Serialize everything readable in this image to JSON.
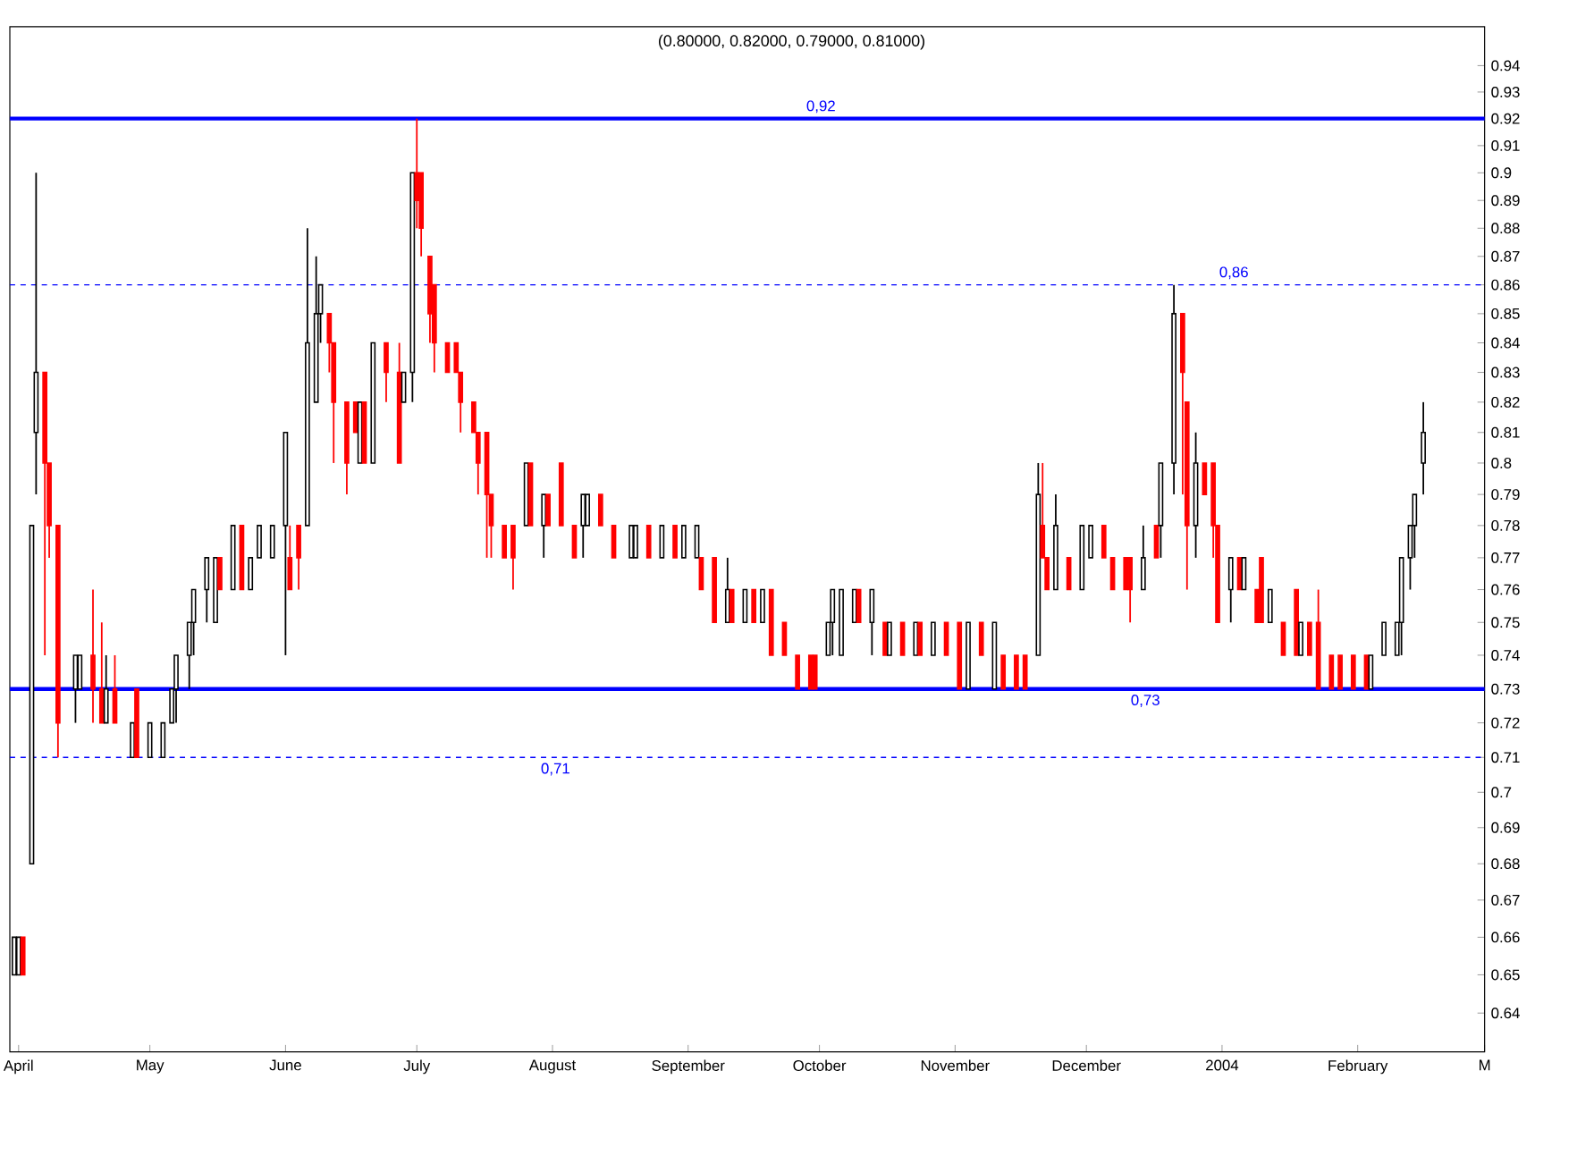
{
  "chart_data": {
    "type": "candlestick",
    "title": "(0.80000, 0.82000, 0.79000, 0.81000)",
    "log": true,
    "x": [
      "2003-03-31",
      "2003-04-01",
      "2003-04-02",
      "2003-04-04",
      "2003-04-05",
      "2003-04-07",
      "2003-04-08",
      "2003-04-10",
      "2003-04-14",
      "2003-04-15",
      "2003-04-18",
      "2003-04-20",
      "2003-04-21",
      "2003-04-23",
      "2003-04-27",
      "2003-04-28",
      "2003-05-01",
      "2003-05-04",
      "2003-05-06",
      "2003-05-07",
      "2003-05-10",
      "2003-05-11",
      "2003-05-14",
      "2003-05-16",
      "2003-05-17",
      "2003-05-20",
      "2003-05-22",
      "2003-05-24",
      "2003-05-26",
      "2003-05-29",
      "2003-06-01",
      "2003-06-02",
      "2003-06-04",
      "2003-06-06",
      "2003-06-08",
      "2003-06-09",
      "2003-06-11",
      "2003-06-12",
      "2003-06-15",
      "2003-06-17",
      "2003-06-18",
      "2003-06-19",
      "2003-06-21",
      "2003-06-24",
      "2003-06-27",
      "2003-06-28",
      "2003-06-30",
      "2003-07-01",
      "2003-07-02",
      "2003-07-04",
      "2003-07-05",
      "2003-07-08",
      "2003-07-10",
      "2003-07-11",
      "2003-07-14",
      "2003-07-15",
      "2003-07-17",
      "2003-07-18",
      "2003-07-21",
      "2003-07-23",
      "2003-07-26",
      "2003-07-27",
      "2003-07-30",
      "2003-07-31",
      "2003-08-03",
      "2003-08-06",
      "2003-08-08",
      "2003-08-09",
      "2003-08-12",
      "2003-08-15",
      "2003-08-19",
      "2003-08-20",
      "2003-08-23",
      "2003-08-26",
      "2003-08-29",
      "2003-08-31",
      "2003-09-03",
      "2003-09-04",
      "2003-09-07",
      "2003-09-10",
      "2003-09-11",
      "2003-09-14",
      "2003-09-16",
      "2003-09-18",
      "2003-09-20",
      "2003-09-23",
      "2003-09-26",
      "2003-09-29",
      "2003-09-30",
      "2003-10-03",
      "2003-10-04",
      "2003-10-06",
      "2003-10-09",
      "2003-10-10",
      "2003-10-13",
      "2003-10-16",
      "2003-10-17",
      "2003-10-20",
      "2003-10-23",
      "2003-10-24",
      "2003-10-27",
      "2003-10-30",
      "2003-11-02",
      "2003-11-04",
      "2003-11-07",
      "2003-11-10",
      "2003-11-12",
      "2003-11-15",
      "2003-11-17",
      "2003-11-20",
      "2003-11-21",
      "2003-11-22",
      "2003-11-24",
      "2003-11-27",
      "2003-11-30",
      "2003-12-02",
      "2003-12-05",
      "2003-12-07",
      "2003-12-10",
      "2003-12-11",
      "2003-12-14",
      "2003-12-17",
      "2003-12-18",
      "2003-12-21",
      "2003-12-23",
      "2003-12-24",
      "2003-12-26",
      "2003-12-28",
      "2003-12-30",
      "2003-12-31",
      "2004-01-03",
      "2004-01-05",
      "2004-01-06",
      "2004-01-09",
      "2004-01-10",
      "2004-01-12",
      "2004-01-15",
      "2004-01-18",
      "2004-01-19",
      "2004-01-21",
      "2004-01-23",
      "2004-01-26",
      "2004-01-28",
      "2004-01-31",
      "2004-02-03",
      "2004-02-04",
      "2004-02-07",
      "2004-02-10",
      "2004-02-11",
      "2004-02-13",
      "2004-02-14",
      "2004-02-16"
    ],
    "ohlc": [
      [
        0.65,
        0.66,
        0.65,
        0.66
      ],
      [
        0.65,
        0.66,
        0.65,
        0.66
      ],
      [
        0.66,
        0.66,
        0.65,
        0.65
      ],
      [
        0.68,
        0.78,
        0.68,
        0.78
      ],
      [
        0.81,
        0.9,
        0.79,
        0.83
      ],
      [
        0.83,
        0.83,
        0.74,
        0.8
      ],
      [
        0.8,
        0.8,
        0.77,
        0.78
      ],
      [
        0.78,
        0.78,
        0.71,
        0.72
      ],
      [
        0.73,
        0.74,
        0.72,
        0.74
      ],
      [
        0.73,
        0.74,
        0.73,
        0.74
      ],
      [
        0.74,
        0.76,
        0.72,
        0.73
      ],
      [
        0.73,
        0.75,
        0.72,
        0.72
      ],
      [
        0.72,
        0.74,
        0.72,
        0.73
      ],
      [
        0.73,
        0.74,
        0.72,
        0.72
      ],
      [
        0.71,
        0.72,
        0.71,
        0.72
      ],
      [
        0.73,
        0.73,
        0.71,
        0.71
      ],
      [
        0.71,
        0.72,
        0.71,
        0.72
      ],
      [
        0.71,
        0.72,
        0.71,
        0.72
      ],
      [
        0.72,
        0.73,
        0.72,
        0.73
      ],
      [
        0.73,
        0.74,
        0.72,
        0.74
      ],
      [
        0.74,
        0.75,
        0.73,
        0.75
      ],
      [
        0.75,
        0.76,
        0.74,
        0.76
      ],
      [
        0.76,
        0.77,
        0.75,
        0.77
      ],
      [
        0.75,
        0.77,
        0.75,
        0.77
      ],
      [
        0.77,
        0.77,
        0.76,
        0.76
      ],
      [
        0.76,
        0.78,
        0.76,
        0.78
      ],
      [
        0.78,
        0.78,
        0.76,
        0.76
      ],
      [
        0.76,
        0.77,
        0.76,
        0.77
      ],
      [
        0.77,
        0.78,
        0.77,
        0.78
      ],
      [
        0.77,
        0.78,
        0.77,
        0.78
      ],
      [
        0.78,
        0.81,
        0.74,
        0.81
      ],
      [
        0.77,
        0.78,
        0.76,
        0.76
      ],
      [
        0.78,
        0.78,
        0.76,
        0.77
      ],
      [
        0.78,
        0.88,
        0.78,
        0.84
      ],
      [
        0.82,
        0.87,
        0.82,
        0.85
      ],
      [
        0.85,
        0.86,
        0.84,
        0.86
      ],
      [
        0.85,
        0.85,
        0.83,
        0.84
      ],
      [
        0.84,
        0.84,
        0.8,
        0.82
      ],
      [
        0.82,
        0.82,
        0.79,
        0.8
      ],
      [
        0.82,
        0.82,
        0.81,
        0.81
      ],
      [
        0.8,
        0.82,
        0.8,
        0.82
      ],
      [
        0.82,
        0.82,
        0.8,
        0.8
      ],
      [
        0.8,
        0.84,
        0.8,
        0.84
      ],
      [
        0.84,
        0.84,
        0.82,
        0.83
      ],
      [
        0.83,
        0.84,
        0.8,
        0.8
      ],
      [
        0.82,
        0.83,
        0.82,
        0.83
      ],
      [
        0.83,
        0.9,
        0.82,
        0.9
      ],
      [
        0.9,
        0.92,
        0.88,
        0.89
      ],
      [
        0.9,
        0.9,
        0.87,
        0.88
      ],
      [
        0.87,
        0.87,
        0.84,
        0.85
      ],
      [
        0.86,
        0.86,
        0.83,
        0.84
      ],
      [
        0.84,
        0.84,
        0.83,
        0.83
      ],
      [
        0.84,
        0.84,
        0.83,
        0.83
      ],
      [
        0.83,
        0.83,
        0.81,
        0.82
      ],
      [
        0.82,
        0.82,
        0.81,
        0.81
      ],
      [
        0.81,
        0.81,
        0.79,
        0.8
      ],
      [
        0.81,
        0.81,
        0.77,
        0.79
      ],
      [
        0.79,
        0.79,
        0.77,
        0.78
      ],
      [
        0.78,
        0.78,
        0.77,
        0.77
      ],
      [
        0.78,
        0.78,
        0.76,
        0.77
      ],
      [
        0.78,
        0.8,
        0.78,
        0.8
      ],
      [
        0.8,
        0.8,
        0.78,
        0.78
      ],
      [
        0.78,
        0.79,
        0.77,
        0.79
      ],
      [
        0.79,
        0.79,
        0.78,
        0.78
      ],
      [
        0.8,
        0.8,
        0.78,
        0.78
      ],
      [
        0.78,
        0.78,
        0.77,
        0.77
      ],
      [
        0.78,
        0.79,
        0.77,
        0.79
      ],
      [
        0.78,
        0.79,
        0.78,
        0.79
      ],
      [
        0.79,
        0.79,
        0.78,
        0.78
      ],
      [
        0.78,
        0.78,
        0.77,
        0.77
      ],
      [
        0.77,
        0.78,
        0.77,
        0.78
      ],
      [
        0.77,
        0.78,
        0.77,
        0.78
      ],
      [
        0.78,
        0.78,
        0.77,
        0.77
      ],
      [
        0.77,
        0.78,
        0.77,
        0.78
      ],
      [
        0.78,
        0.78,
        0.77,
        0.77
      ],
      [
        0.77,
        0.78,
        0.77,
        0.78
      ],
      [
        0.77,
        0.78,
        0.77,
        0.78
      ],
      [
        0.77,
        0.77,
        0.76,
        0.76
      ],
      [
        0.77,
        0.77,
        0.75,
        0.75
      ],
      [
        0.75,
        0.77,
        0.75,
        0.76
      ],
      [
        0.76,
        0.76,
        0.75,
        0.75
      ],
      [
        0.75,
        0.76,
        0.75,
        0.76
      ],
      [
        0.76,
        0.76,
        0.75,
        0.75
      ],
      [
        0.75,
        0.76,
        0.75,
        0.76
      ],
      [
        0.76,
        0.76,
        0.74,
        0.74
      ],
      [
        0.75,
        0.75,
        0.74,
        0.74
      ],
      [
        0.74,
        0.74,
        0.73,
        0.73
      ],
      [
        0.74,
        0.74,
        0.73,
        0.73
      ],
      [
        0.74,
        0.74,
        0.73,
        0.73
      ],
      [
        0.74,
        0.75,
        0.74,
        0.75
      ],
      [
        0.75,
        0.76,
        0.74,
        0.76
      ],
      [
        0.74,
        0.76,
        0.74,
        0.76
      ],
      [
        0.75,
        0.76,
        0.75,
        0.76
      ],
      [
        0.76,
        0.76,
        0.75,
        0.75
      ],
      [
        0.75,
        0.76,
        0.74,
        0.76
      ],
      [
        0.75,
        0.75,
        0.74,
        0.74
      ],
      [
        0.74,
        0.75,
        0.74,
        0.75
      ],
      [
        0.75,
        0.75,
        0.74,
        0.74
      ],
      [
        0.74,
        0.75,
        0.74,
        0.75
      ],
      [
        0.75,
        0.75,
        0.74,
        0.74
      ],
      [
        0.74,
        0.75,
        0.74,
        0.75
      ],
      [
        0.75,
        0.75,
        0.74,
        0.74
      ],
      [
        0.75,
        0.75,
        0.73,
        0.73
      ],
      [
        0.73,
        0.75,
        0.73,
        0.75
      ],
      [
        0.75,
        0.75,
        0.74,
        0.74
      ],
      [
        0.73,
        0.75,
        0.73,
        0.75
      ],
      [
        0.74,
        0.74,
        0.73,
        0.73
      ],
      [
        0.74,
        0.74,
        0.73,
        0.73
      ],
      [
        0.74,
        0.74,
        0.73,
        0.73
      ],
      [
        0.74,
        0.8,
        0.74,
        0.79
      ],
      [
        0.78,
        0.8,
        0.77,
        0.77
      ],
      [
        0.77,
        0.77,
        0.76,
        0.76
      ],
      [
        0.76,
        0.79,
        0.76,
        0.78
      ],
      [
        0.77,
        0.77,
        0.76,
        0.76
      ],
      [
        0.76,
        0.78,
        0.76,
        0.78
      ],
      [
        0.77,
        0.78,
        0.77,
        0.78
      ],
      [
        0.78,
        0.78,
        0.77,
        0.77
      ],
      [
        0.77,
        0.77,
        0.76,
        0.76
      ],
      [
        0.77,
        0.77,
        0.76,
        0.76
      ],
      [
        0.77,
        0.77,
        0.75,
        0.76
      ],
      [
        0.76,
        0.78,
        0.76,
        0.77
      ],
      [
        0.78,
        0.78,
        0.77,
        0.77
      ],
      [
        0.78,
        0.8,
        0.77,
        0.8
      ],
      [
        0.8,
        0.86,
        0.79,
        0.85
      ],
      [
        0.85,
        0.85,
        0.79,
        0.83
      ],
      [
        0.82,
        0.82,
        0.76,
        0.78
      ],
      [
        0.78,
        0.81,
        0.77,
        0.8
      ],
      [
        0.8,
        0.8,
        0.79,
        0.79
      ],
      [
        0.8,
        0.8,
        0.77,
        0.78
      ],
      [
        0.78,
        0.78,
        0.75,
        0.75
      ],
      [
        0.76,
        0.77,
        0.75,
        0.77
      ],
      [
        0.77,
        0.77,
        0.76,
        0.76
      ],
      [
        0.76,
        0.77,
        0.76,
        0.77
      ],
      [
        0.76,
        0.76,
        0.75,
        0.75
      ],
      [
        0.77,
        0.77,
        0.75,
        0.75
      ],
      [
        0.75,
        0.76,
        0.75,
        0.76
      ],
      [
        0.75,
        0.75,
        0.74,
        0.74
      ],
      [
        0.76,
        0.76,
        0.74,
        0.74
      ],
      [
        0.74,
        0.75,
        0.74,
        0.75
      ],
      [
        0.75,
        0.75,
        0.74,
        0.74
      ],
      [
        0.75,
        0.76,
        0.73,
        0.73
      ],
      [
        0.74,
        0.74,
        0.73,
        0.73
      ],
      [
        0.74,
        0.74,
        0.73,
        0.73
      ],
      [
        0.74,
        0.74,
        0.73,
        0.73
      ],
      [
        0.74,
        0.74,
        0.73,
        0.73
      ],
      [
        0.73,
        0.74,
        0.73,
        0.74
      ],
      [
        0.74,
        0.75,
        0.74,
        0.75
      ],
      [
        0.74,
        0.75,
        0.74,
        0.75
      ],
      [
        0.75,
        0.77,
        0.74,
        0.77
      ],
      [
        0.77,
        0.78,
        0.76,
        0.78
      ],
      [
        0.78,
        0.79,
        0.77,
        0.79
      ],
      [
        0.8,
        0.82,
        0.79,
        0.81
      ]
    ],
    "xlim": [
      "2003-03-30",
      "2004-03-01"
    ],
    "xticks": [
      {
        "value": "2003-04-01",
        "label": "April"
      },
      {
        "value": "2003-05-01",
        "label": "May"
      },
      {
        "value": "2003-06-01",
        "label": "June"
      },
      {
        "value": "2003-07-01",
        "label": "July"
      },
      {
        "value": "2003-08-01",
        "label": "August"
      },
      {
        "value": "2003-09-01",
        "label": "September"
      },
      {
        "value": "2003-10-01",
        "label": "October"
      },
      {
        "value": "2003-11-01",
        "label": "November"
      },
      {
        "value": "2003-12-01",
        "label": "December"
      },
      {
        "value": "2004-01-01",
        "label": "2004"
      },
      {
        "value": "2004-02-01",
        "label": "February"
      },
      {
        "value": "2004-03-01",
        "label": "M"
      }
    ],
    "ylim": [
      0.63,
      0.955
    ],
    "yticks": [
      0.64,
      0.65,
      0.66,
      0.67,
      0.68,
      0.69,
      0.7,
      0.71,
      0.72,
      0.73,
      0.74,
      0.75,
      0.76,
      0.77,
      0.78,
      0.79,
      0.8,
      0.81,
      0.82,
      0.83,
      0.84,
      0.85,
      0.86,
      0.87,
      0.88,
      0.89,
      0.9,
      0.91,
      0.92,
      0.93,
      0.94
    ],
    "ref_lines": [
      {
        "axis": "y",
        "value": 0.92,
        "label": "0,92",
        "color": "#0000ff",
        "line_style": "solid"
      },
      {
        "axis": "y",
        "value": 0.86,
        "label": "0,86",
        "color": "#0000ff",
        "line_style": "dashed"
      },
      {
        "axis": "y",
        "value": 0.73,
        "label": "0,73",
        "color": "#0000ff",
        "line_style": "solid"
      },
      {
        "axis": "y",
        "value": 0.71,
        "label": "0,71",
        "color": "#0000ff",
        "line_style": "dashed"
      }
    ]
  }
}
